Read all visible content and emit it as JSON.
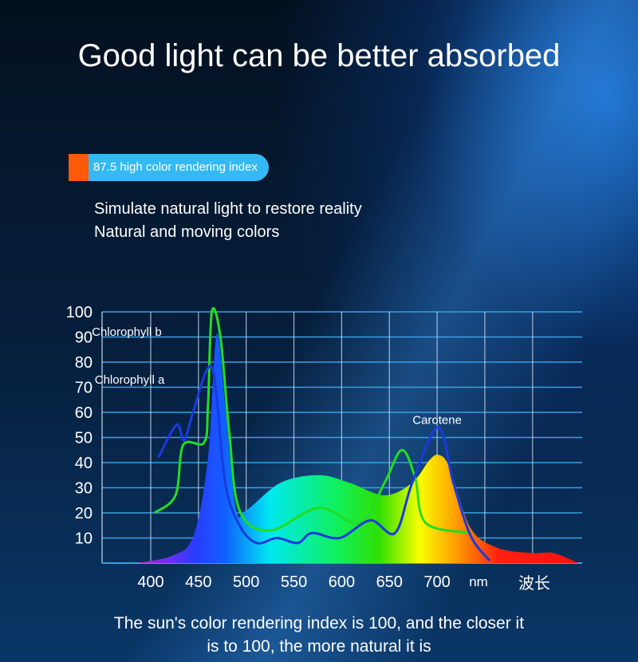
{
  "header": {
    "title": "Good light can be better absorbed"
  },
  "badge": {
    "label": "87.5 high color rendering index",
    "accent": "#ff5a0a",
    "color": "#35b9f4"
  },
  "subtitle": {
    "line1": "Simulate natural light to restore reality",
    "line2": "Natural and moving colors"
  },
  "footer": {
    "line1": "The sun's color rendering index is 100, and the closer it",
    "line2": "is to 100, the more natural it is"
  },
  "chart_data": {
    "type": "area",
    "xlabel": "nm",
    "xlabel2": "波长",
    "xticks": [
      400,
      450,
      500,
      550,
      600,
      650,
      700
    ],
    "yticks": [
      10,
      20,
      30,
      40,
      50,
      60,
      70,
      80,
      90,
      100
    ],
    "ylim": [
      0,
      100
    ],
    "xlim": [
      350,
      850
    ],
    "grid": true,
    "annotations": [
      {
        "text": "Chlorophyll b",
        "x": 425,
        "y": 92
      },
      {
        "text": "Chlorophyll a",
        "x": 428,
        "y": 73
      },
      {
        "text": "Carotene",
        "x": 700,
        "y": 57
      }
    ],
    "series": [
      {
        "kind": "area",
        "color": "spectrum",
        "x": [
          386,
          423,
          445,
          460,
          469,
          478,
          489,
          500,
          536,
          576,
          608,
          645,
          674,
          692,
          702,
          713,
          735,
          764,
          800,
          822,
          848
        ],
        "y": [
          0,
          3,
          11,
          42,
          91,
          63,
          22,
          21,
          32,
          35,
          32,
          27,
          32,
          41,
          43,
          38,
          14,
          6,
          4,
          4,
          0
        ]
      },
      {
        "kind": "line",
        "color": "#22dd22",
        "x": [
          404,
          426,
          434,
          456,
          460,
          464,
          473,
          482,
          493,
          525,
          576,
          619,
          645,
          663,
          677,
          688,
          735
        ],
        "y": [
          20,
          27,
          47,
          48,
          63,
          100,
          90,
          53,
          21,
          13,
          22,
          16,
          32,
          45,
          34,
          16,
          12
        ]
      },
      {
        "kind": "line",
        "color": "#1a3ae0",
        "x": [
          408,
          427,
          435,
          445,
          459,
          467,
          478,
          493,
          511,
          532,
          554,
          569,
          598,
          630,
          656,
          674,
          701,
          717,
          735,
          755
        ],
        "y": [
          42,
          55,
          49,
          61,
          77,
          73,
          32,
          15,
          8,
          10,
          8,
          12,
          10,
          17,
          12,
          32,
          54,
          32,
          11,
          1
        ]
      }
    ]
  }
}
